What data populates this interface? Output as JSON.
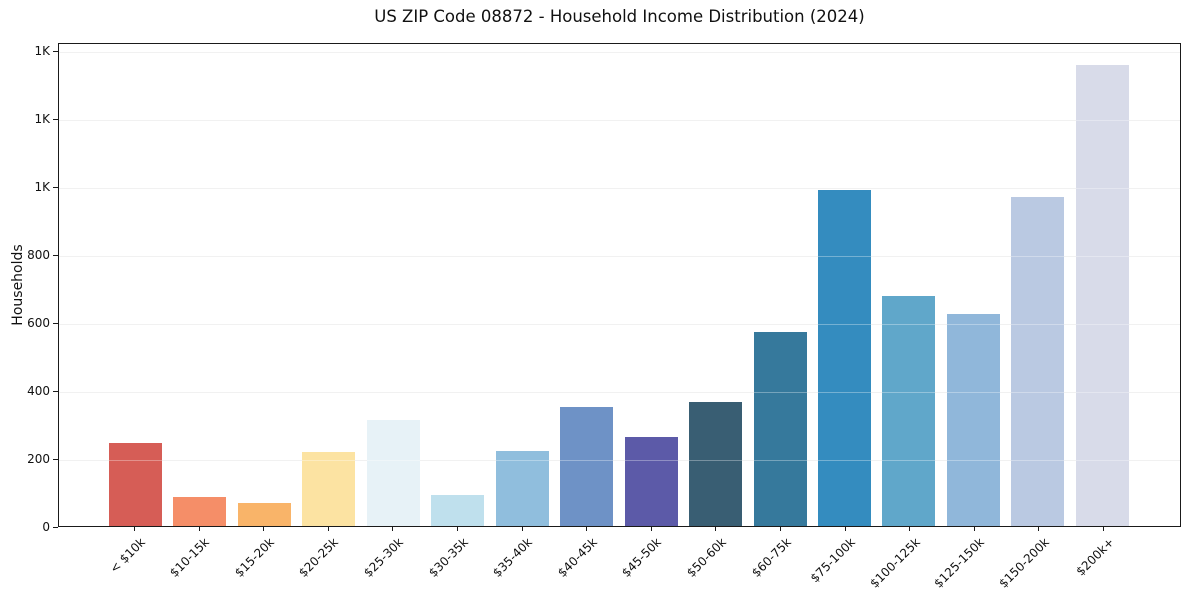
{
  "chart_data": {
    "type": "bar",
    "title": "US ZIP Code 08872 - Household Income Distribution (2024)",
    "xlabel": "",
    "ylabel": "Households",
    "categories": [
      "< $10k",
      "$10-15k",
      "$15-20k",
      "$20-25k",
      "$25-30k",
      "$30-35k",
      "$35-40k",
      "$40-45k",
      "$45-50k",
      "$50-60k",
      "$60-75k",
      "$75-100k",
      "$100-125k",
      "$125-150k",
      "$150-200k",
      "$200k+"
    ],
    "values": [
      243,
      86,
      67,
      218,
      312,
      90,
      222,
      350,
      262,
      365,
      572,
      990,
      676,
      625,
      970,
      1356
    ],
    "bar_colors": [
      "#d65d56",
      "#f58e68",
      "#f9b469",
      "#fce3a2",
      "#e7f2f7",
      "#bfe0ed",
      "#90bedd",
      "#6e92c6",
      "#5c5aa8",
      "#395e73",
      "#36799c",
      "#348cbf",
      "#60a7ca",
      "#90b7da",
      "#bac9e2",
      "#d8dbe9"
    ],
    "ylim": [
      0,
      1425
    ],
    "yticks": [
      {
        "value": 0,
        "label": "0"
      },
      {
        "value": 200,
        "label": "200"
      },
      {
        "value": 400,
        "label": "400"
      },
      {
        "value": 600,
        "label": "600"
      },
      {
        "value": 800,
        "label": "800"
      },
      {
        "value": 1000,
        "label": "1K"
      },
      {
        "value": 1200,
        "label": "1K"
      },
      {
        "value": 1400,
        "label": "1K"
      }
    ],
    "grid": "horizontal",
    "legend": "none",
    "background_color": "#ffffff",
    "spine_color": "#1a1a1a"
  }
}
